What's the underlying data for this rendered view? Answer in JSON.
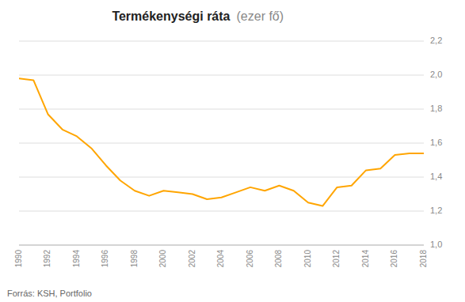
{
  "chart_data": {
    "type": "line",
    "title": "Termékenységi ráta",
    "subtitle": "(ezer fő)",
    "source": "Forrás: KSH, Portfolio",
    "x": [
      1990,
      1991,
      1992,
      1993,
      1994,
      1995,
      1996,
      1997,
      1998,
      1999,
      2000,
      2001,
      2002,
      2003,
      2004,
      2005,
      2006,
      2007,
      2008,
      2009,
      2010,
      2011,
      2012,
      2013,
      2014,
      2015,
      2016,
      2017,
      2018
    ],
    "values": [
      1.98,
      1.97,
      1.77,
      1.68,
      1.64,
      1.57,
      1.47,
      1.38,
      1.32,
      1.29,
      1.32,
      1.31,
      1.3,
      1.27,
      1.28,
      1.31,
      1.34,
      1.32,
      1.35,
      1.32,
      1.25,
      1.23,
      1.34,
      1.35,
      1.44,
      1.45,
      1.53,
      1.54,
      1.54
    ],
    "color": "#FFA500",
    "xlim": [
      1990,
      2018
    ],
    "xticks": [
      1990,
      1992,
      1994,
      1996,
      1998,
      2000,
      2002,
      2004,
      2006,
      2008,
      2010,
      2012,
      2014,
      2016,
      2018
    ],
    "ylim": [
      1.0,
      2.2
    ],
    "yticks": [
      {
        "value": 1.0,
        "label": "1,0"
      },
      {
        "value": 1.2,
        "label": "1,2"
      },
      {
        "value": 1.4,
        "label": "1,4"
      },
      {
        "value": 1.6,
        "label": "1,6"
      },
      {
        "value": 1.8,
        "label": "1,8"
      },
      {
        "value": 2.0,
        "label": "2,0"
      },
      {
        "value": 2.2,
        "label": "2,2"
      }
    ],
    "grid": true
  }
}
